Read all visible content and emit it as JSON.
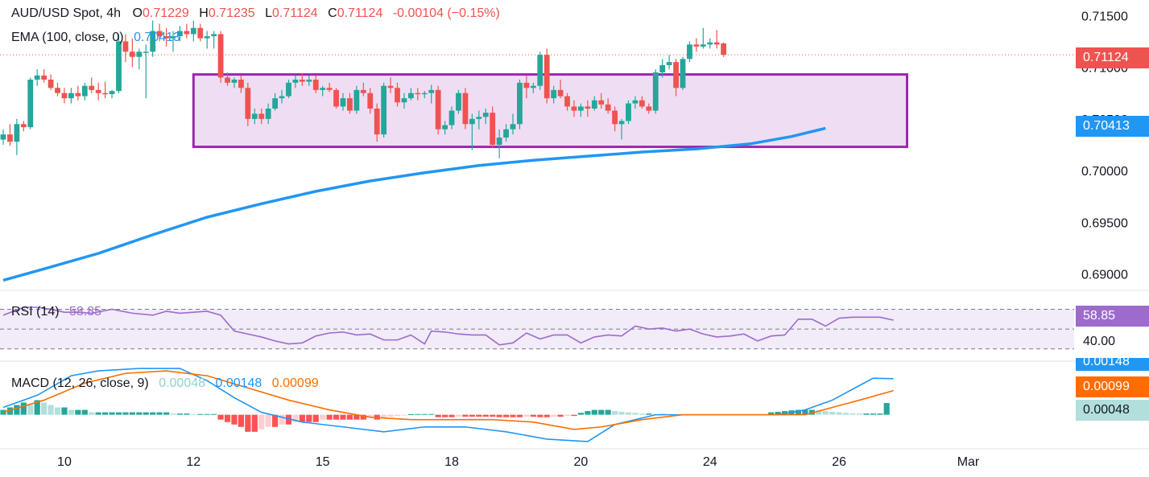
{
  "header": {
    "symbol": "AUD/USD Spot, 4h",
    "o_label": "O",
    "o_value": "0.71229",
    "h_label": "H",
    "h_value": "0.71235",
    "l_label": "L",
    "l_value": "0.71124",
    "c_label": "C",
    "c_value": "0.71124",
    "change": "-0.00104 (−0.15%)"
  },
  "ema_legend": {
    "label": "EMA (100, close, 0)",
    "value": "0.70413"
  },
  "rsi_legend": {
    "label": "RSI (14)",
    "value": "58.85"
  },
  "macd_legend": {
    "label": "MACD (12, 26, close, 9)",
    "hist": "0.00048",
    "macd": "0.00148",
    "signal": "0.00099"
  },
  "price_tags": {
    "last": "0.71124",
    "ema": "0.70413"
  },
  "rsi_tags": {
    "current": "58.85",
    "level": "40.00"
  },
  "macd_tags": {
    "macd": "0.00148",
    "signal": "0.00099",
    "hist": "0.00048"
  },
  "colors": {
    "up": "#26a69a",
    "down": "#ef5350",
    "ema": "#2196f3",
    "box_border": "#9c27b0",
    "box_fill": "#e9d3ef",
    "rsi": "#9c6bcc",
    "macd": "#2196f3",
    "signal": "#ff6d00"
  },
  "chart_data": {
    "type": "candlestick",
    "ylim": [
      0.6885,
      0.7165
    ],
    "y_ticks": [
      "0.71500",
      "0.71000",
      "0.70500",
      "0.70000",
      "0.69500",
      "0.69000"
    ],
    "y_tick_values": [
      0.715,
      0.71,
      0.705,
      0.7,
      0.695,
      0.69
    ],
    "x_ticks": [
      {
        "label": "10",
        "index": 9
      },
      {
        "label": "12",
        "index": 28
      },
      {
        "label": "15",
        "index": 47
      },
      {
        "label": "18",
        "index": 66
      },
      {
        "label": "20",
        "index": 85
      },
      {
        "label": "24",
        "index": 104
      },
      {
        "label": "26",
        "index": 123
      },
      {
        "label": "Mar",
        "index": 142
      }
    ],
    "range_box": {
      "from_index": 28,
      "to_index": 133,
      "low": 0.7023,
      "high": 0.7093
    },
    "candles": [
      [
        0.703,
        0.704,
        0.7025,
        0.7035
      ],
      [
        0.7035,
        0.7045,
        0.7024,
        0.7028
      ],
      [
        0.7028,
        0.705,
        0.7015,
        0.7045
      ],
      [
        0.7045,
        0.7048,
        0.7038,
        0.7042
      ],
      [
        0.7042,
        0.709,
        0.704,
        0.7088
      ],
      [
        0.7088,
        0.7098,
        0.7082,
        0.7092
      ],
      [
        0.7092,
        0.7098,
        0.7085,
        0.7088
      ],
      [
        0.7088,
        0.7093,
        0.7078,
        0.708
      ],
      [
        0.708,
        0.7085,
        0.7072,
        0.7075
      ],
      [
        0.7075,
        0.708,
        0.7065,
        0.707
      ],
      [
        0.707,
        0.708,
        0.7065,
        0.7075
      ],
      [
        0.7075,
        0.7082,
        0.7068,
        0.7072
      ],
      [
        0.7072,
        0.7085,
        0.7068,
        0.7082
      ],
      [
        0.7082,
        0.709,
        0.7075,
        0.7078
      ],
      [
        0.7078,
        0.7085,
        0.7068,
        0.7075
      ],
      [
        0.7075,
        0.7086,
        0.707,
        0.7074
      ],
      [
        0.7074,
        0.7078,
        0.707,
        0.7077
      ],
      [
        0.7077,
        0.7132,
        0.7075,
        0.7125
      ],
      [
        0.7125,
        0.7132,
        0.7105,
        0.7115
      ],
      [
        0.7115,
        0.7128,
        0.71,
        0.711
      ],
      [
        0.711,
        0.7118,
        0.7098,
        0.7115
      ],
      [
        0.7115,
        0.7122,
        0.707,
        0.7115
      ],
      [
        0.7115,
        0.7145,
        0.711,
        0.7135
      ],
      [
        0.7135,
        0.7142,
        0.7125,
        0.713
      ],
      [
        0.713,
        0.7138,
        0.712,
        0.7128
      ],
      [
        0.7128,
        0.7135,
        0.7115,
        0.713
      ],
      [
        0.713,
        0.714,
        0.7125,
        0.7135
      ],
      [
        0.7135,
        0.7142,
        0.7128,
        0.7132
      ],
      [
        0.7132,
        0.7145,
        0.7125,
        0.7138
      ],
      [
        0.7138,
        0.7142,
        0.7125,
        0.7128
      ],
      [
        0.7128,
        0.7135,
        0.7118,
        0.713
      ],
      [
        0.713,
        0.7135,
        0.7118,
        0.7132
      ],
      [
        0.7132,
        0.7135,
        0.7085,
        0.709
      ],
      [
        0.709,
        0.7095,
        0.7082,
        0.7085
      ],
      [
        0.7085,
        0.709,
        0.708,
        0.7088
      ],
      [
        0.7088,
        0.7092,
        0.7075,
        0.708
      ],
      [
        0.708,
        0.7085,
        0.7043,
        0.705
      ],
      [
        0.705,
        0.706,
        0.7045,
        0.7055
      ],
      [
        0.7055,
        0.706,
        0.7045,
        0.705
      ],
      [
        0.705,
        0.7065,
        0.7045,
        0.706
      ],
      [
        0.706,
        0.7075,
        0.7058,
        0.707
      ],
      [
        0.707,
        0.7078,
        0.7065,
        0.7072
      ],
      [
        0.7072,
        0.7088,
        0.707,
        0.7085
      ],
      [
        0.7085,
        0.7092,
        0.708,
        0.7088
      ],
      [
        0.7088,
        0.7094,
        0.7082,
        0.7086
      ],
      [
        0.7086,
        0.7092,
        0.7082,
        0.7088
      ],
      [
        0.7088,
        0.7092,
        0.7075,
        0.7078
      ],
      [
        0.7078,
        0.7082,
        0.7072,
        0.708
      ],
      [
        0.708,
        0.7085,
        0.7076,
        0.7078
      ],
      [
        0.7078,
        0.708,
        0.706,
        0.7062
      ],
      [
        0.7062,
        0.7075,
        0.7058,
        0.707
      ],
      [
        0.707,
        0.7075,
        0.7055,
        0.7058
      ],
      [
        0.7058,
        0.7082,
        0.7055,
        0.7078
      ],
      [
        0.7078,
        0.7085,
        0.7072,
        0.7075
      ],
      [
        0.7075,
        0.708,
        0.7055,
        0.706
      ],
      [
        0.706,
        0.7065,
        0.7028,
        0.7035
      ],
      [
        0.7035,
        0.7085,
        0.7032,
        0.7082
      ],
      [
        0.7082,
        0.709,
        0.7075,
        0.708
      ],
      [
        0.708,
        0.7085,
        0.7062,
        0.7066
      ],
      [
        0.7066,
        0.7075,
        0.706,
        0.707
      ],
      [
        0.707,
        0.708,
        0.7068,
        0.7075
      ],
      [
        0.7075,
        0.708,
        0.7068,
        0.7074
      ],
      [
        0.7074,
        0.7077,
        0.707,
        0.7075
      ],
      [
        0.7075,
        0.7083,
        0.7065,
        0.7078
      ],
      [
        0.7078,
        0.7082,
        0.7035,
        0.704
      ],
      [
        0.704,
        0.7048,
        0.7035,
        0.7044
      ],
      [
        0.7044,
        0.7062,
        0.704,
        0.7058
      ],
      [
        0.7058,
        0.7078,
        0.7055,
        0.7075
      ],
      [
        0.7075,
        0.708,
        0.704,
        0.7045
      ],
      [
        0.7045,
        0.7055,
        0.702,
        0.705
      ],
      [
        0.705,
        0.7058,
        0.704,
        0.7052
      ],
      [
        0.7052,
        0.706,
        0.7045,
        0.7056
      ],
      [
        0.7056,
        0.7062,
        0.7022,
        0.7025
      ],
      [
        0.7025,
        0.704,
        0.7012,
        0.7032
      ],
      [
        0.7032,
        0.7045,
        0.7028,
        0.704
      ],
      [
        0.704,
        0.7055,
        0.7035,
        0.7045
      ],
      [
        0.7045,
        0.7088,
        0.704,
        0.7085
      ],
      [
        0.7085,
        0.7092,
        0.707,
        0.708
      ],
      [
        0.708,
        0.7085,
        0.7075,
        0.7082
      ],
      [
        0.7082,
        0.7115,
        0.7078,
        0.7112
      ],
      [
        0.7112,
        0.7118,
        0.7065,
        0.707
      ],
      [
        0.707,
        0.7082,
        0.7065,
        0.7078
      ],
      [
        0.7078,
        0.7088,
        0.707,
        0.7072
      ],
      [
        0.7072,
        0.7075,
        0.7058,
        0.7062
      ],
      [
        0.7062,
        0.7068,
        0.7052,
        0.7058
      ],
      [
        0.7058,
        0.7065,
        0.7052,
        0.7062
      ],
      [
        0.7062,
        0.7068,
        0.7052,
        0.706
      ],
      [
        0.706,
        0.7072,
        0.7058,
        0.7068
      ],
      [
        0.7068,
        0.7075,
        0.706,
        0.7064
      ],
      [
        0.7064,
        0.707,
        0.7055,
        0.7058
      ],
      [
        0.7058,
        0.7062,
        0.7038,
        0.7045
      ],
      [
        0.7045,
        0.705,
        0.703,
        0.7048
      ],
      [
        0.7048,
        0.7068,
        0.7045,
        0.7065
      ],
      [
        0.7065,
        0.7072,
        0.706,
        0.7068
      ],
      [
        0.7068,
        0.7072,
        0.706,
        0.7062
      ],
      [
        0.7062,
        0.7065,
        0.7055,
        0.7058
      ],
      [
        0.7058,
        0.7098,
        0.7055,
        0.7095
      ],
      [
        0.7095,
        0.7108,
        0.709,
        0.7102
      ],
      [
        0.7102,
        0.7112,
        0.7098,
        0.7105
      ],
      [
        0.7105,
        0.7108,
        0.7072,
        0.708
      ],
      [
        0.708,
        0.711,
        0.7078,
        0.7108
      ],
      [
        0.7108,
        0.7125,
        0.7105,
        0.7122
      ],
      [
        0.7122,
        0.7128,
        0.7115,
        0.712
      ],
      [
        0.712,
        0.7138,
        0.7118,
        0.7122
      ],
      [
        0.7122,
        0.7128,
        0.7118,
        0.7124
      ],
      [
        0.7124,
        0.7136,
        0.7118,
        0.7122
      ],
      [
        0.7123,
        0.7124,
        0.711,
        0.7112
      ]
    ],
    "ema": {
      "points": [
        [
          0,
          0.6894
        ],
        [
          6,
          0.6905
        ],
        [
          14,
          0.692
        ],
        [
          22,
          0.6938
        ],
        [
          30,
          0.6955
        ],
        [
          38,
          0.6968
        ],
        [
          46,
          0.698
        ],
        [
          54,
          0.699
        ],
        [
          62,
          0.6998
        ],
        [
          70,
          0.7005
        ],
        [
          78,
          0.701
        ],
        [
          86,
          0.7014
        ],
        [
          94,
          0.7018
        ],
        [
          102,
          0.7021
        ],
        [
          110,
          0.7026
        ],
        [
          116,
          0.7033
        ],
        [
          121,
          0.7041
        ]
      ]
    },
    "rsi": {
      "ylim": [
        20,
        85
      ],
      "bands": [
        70,
        50,
        30
      ],
      "points": [
        [
          0,
          64
        ],
        [
          3,
          72
        ],
        [
          5,
          72
        ],
        [
          7,
          70
        ],
        [
          9,
          67
        ],
        [
          11,
          67
        ],
        [
          13,
          66
        ],
        [
          16,
          70
        ],
        [
          19,
          66
        ],
        [
          22,
          64
        ],
        [
          24,
          68
        ],
        [
          26,
          66
        ],
        [
          28,
          67
        ],
        [
          30,
          68
        ],
        [
          32,
          64
        ],
        [
          34,
          48
        ],
        [
          36,
          45
        ],
        [
          38,
          42
        ],
        [
          40,
          38
        ],
        [
          42,
          35
        ],
        [
          44,
          36
        ],
        [
          46,
          43
        ],
        [
          48,
          46
        ],
        [
          50,
          47
        ],
        [
          52,
          44
        ],
        [
          54,
          45
        ],
        [
          56,
          39
        ],
        [
          58,
          39
        ],
        [
          60,
          44
        ],
        [
          62,
          35
        ],
        [
          63,
          48
        ],
        [
          65,
          47
        ],
        [
          67,
          45
        ],
        [
          69,
          44
        ],
        [
          71,
          44
        ],
        [
          73,
          34
        ],
        [
          75,
          36
        ],
        [
          77,
          46
        ],
        [
          79,
          40
        ],
        [
          81,
          44
        ],
        [
          83,
          44
        ],
        [
          85,
          36
        ],
        [
          87,
          42
        ],
        [
          89,
          44
        ],
        [
          91,
          43
        ],
        [
          93,
          53
        ],
        [
          95,
          50
        ],
        [
          97,
          51
        ],
        [
          99,
          48
        ],
        [
          101,
          50
        ],
        [
          103,
          45
        ],
        [
          105,
          42
        ],
        [
          107,
          43
        ],
        [
          109,
          45
        ],
        [
          111,
          38
        ],
        [
          113,
          43
        ],
        [
          115,
          44
        ],
        [
          117,
          60
        ],
        [
          119,
          60
        ],
        [
          121,
          53
        ],
        [
          123,
          61
        ],
        [
          125,
          62
        ],
        [
          127,
          62
        ],
        [
          129,
          62
        ],
        [
          131,
          59
        ]
      ]
    },
    "macd": {
      "ylim": [
        -0.0013,
        0.0021
      ],
      "macd_points": [
        [
          0,
          0.0003
        ],
        [
          5,
          0.0008
        ],
        [
          10,
          0.0016
        ],
        [
          14,
          0.0018
        ],
        [
          20,
          0.0019
        ],
        [
          26,
          0.0019
        ],
        [
          30,
          0.0014
        ],
        [
          34,
          0.0007
        ],
        [
          38,
          0.0001
        ],
        [
          44,
          -0.0003
        ],
        [
          50,
          -0.0005
        ],
        [
          56,
          -0.0007
        ],
        [
          62,
          -0.0005
        ],
        [
          68,
          -0.0005
        ],
        [
          74,
          -0.0007
        ],
        [
          80,
          -0.001
        ],
        [
          86,
          -0.0011
        ],
        [
          90,
          -0.0004
        ],
        [
          96,
          0.0
        ],
        [
          102,
          0.0
        ],
        [
          108,
          0.0
        ],
        [
          114,
          0.0
        ],
        [
          118,
          0.0002
        ],
        [
          122,
          0.0006
        ],
        [
          126,
          0.0012
        ],
        [
          128,
          0.0015
        ],
        [
          131,
          0.00148
        ]
      ],
      "signal_points": [
        [
          0,
          0.0001
        ],
        [
          6,
          0.0006
        ],
        [
          12,
          0.0013
        ],
        [
          18,
          0.0017
        ],
        [
          24,
          0.0018
        ],
        [
          30,
          0.0016
        ],
        [
          36,
          0.0011
        ],
        [
          42,
          0.0006
        ],
        [
          48,
          0.0002
        ],
        [
          54,
          -0.0001
        ],
        [
          60,
          -0.0002
        ],
        [
          66,
          -0.0002
        ],
        [
          72,
          -0.0002
        ],
        [
          78,
          -0.0003
        ],
        [
          84,
          -0.0006
        ],
        [
          88,
          -0.0005
        ],
        [
          94,
          -0.0002
        ],
        [
          100,
          0.0
        ],
        [
          106,
          0.0
        ],
        [
          112,
          0.0
        ],
        [
          118,
          0.0
        ],
        [
          122,
          0.0003
        ],
        [
          126,
          0.0006
        ],
        [
          131,
          0.00099
        ]
      ],
      "hist": [
        0.0002,
        0.0003,
        0.0004,
        0.0005,
        0.0004,
        0.0006,
        0.0005,
        0.0004,
        0.0003,
        0.0003,
        0.0002,
        0.0002,
        0.0002,
        0.0001,
        0.0001,
        0.0001,
        0.0001,
        0.0001,
        0.0001,
        0.0001,
        0.0001,
        0.0001,
        0.0001,
        0.0001,
        0.0001,
        5e-05,
        5e-05,
        5e-05,
        3e-05,
        3e-05,
        3e-05,
        3e-05,
        -0.0002,
        -0.0003,
        -0.0004,
        -0.0005,
        -0.0007,
        -0.0007,
        -0.0006,
        -0.0005,
        -0.0005,
        -0.0004,
        -0.0004,
        -0.0003,
        -0.0003,
        -0.0003,
        -0.0003,
        -0.0002,
        -0.0002,
        -0.0002,
        -0.0002,
        -0.0002,
        -0.0002,
        -0.0002,
        -0.0001,
        -0.0002,
        -0.0001,
        -8e-05,
        -5e-05,
        -3e-05,
        2e-05,
        3e-05,
        3e-05,
        3e-05,
        -0.0001,
        -0.0001,
        -0.0001,
        -8e-05,
        -8e-05,
        -8e-05,
        -8e-05,
        -8e-05,
        -8e-05,
        -0.0001,
        -0.0001,
        -0.0001,
        -0.0001,
        -8e-05,
        -8e-05,
        -0.0001,
        -0.0001,
        -8e-05,
        -8e-05,
        -5e-05,
        -5e-05,
        8e-05,
        0.00015,
        0.0002,
        0.0002,
        0.0002,
        0.00015,
        0.00012,
        0.0001,
        8e-05,
        5e-05,
        5e-05,
        3e-05,
        3e-05,
        2e-05,
        2e-05,
        2e-05,
        2e-05,
        2e-05,
        2e-05,
        2e-05,
        2e-05,
        2e-05,
        2e-05,
        2e-05,
        2e-05,
        2e-05,
        2e-05,
        2e-05,
        0.0001,
        0.00012,
        0.00015,
        0.00018,
        0.0002,
        0.0002,
        0.0002,
        0.00018,
        0.00015,
        0.00012,
        0.0001,
        8e-05,
        6e-05,
        5e-05,
        5e-05,
        5e-05,
        5e-05,
        0.00048
      ]
    }
  }
}
